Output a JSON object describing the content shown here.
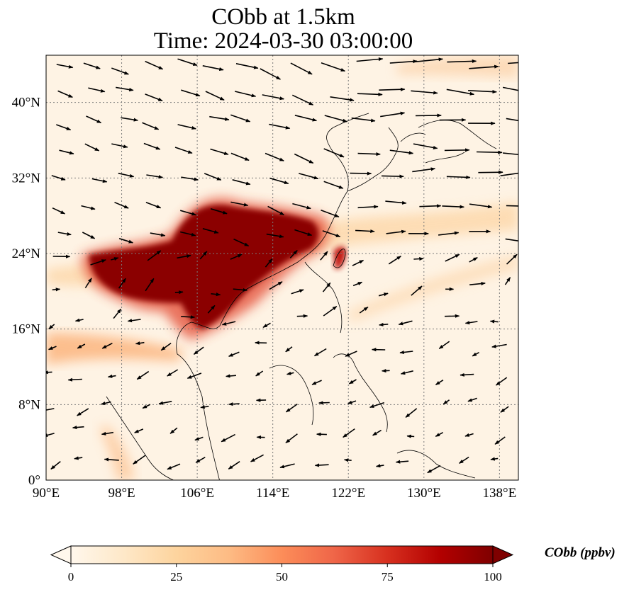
{
  "figure": {
    "title_line1": "CObb at 1.5km",
    "title_line2": "Time: 2024-03-30 03:00:00"
  },
  "map": {
    "lon_range": [
      90,
      140
    ],
    "lat_range": [
      0,
      45
    ],
    "lon_ticks": [
      "90°E",
      "98°E",
      "106°E",
      "114°E",
      "122°E",
      "130°E",
      "138°E"
    ],
    "lon_tick_values": [
      90,
      98,
      106,
      114,
      122,
      130,
      138
    ],
    "lat_ticks": [
      "0°",
      "8°N",
      "16°N",
      "24°N",
      "32°N",
      "40°N"
    ],
    "lat_tick_values": [
      0,
      8,
      16,
      24,
      32,
      40
    ],
    "gridlines": true,
    "gridline_style": "dotted",
    "coastlines": true,
    "wind_vectors": true
  },
  "colorbar": {
    "label": "CObb (ppbv)",
    "ticks": [
      "0",
      "25",
      "50",
      "75",
      "100"
    ],
    "range": [
      0,
      100
    ],
    "colormap": "OrRd",
    "extend": "both",
    "colors": [
      "#fff7ec",
      "#fee8c8",
      "#fdd49e",
      "#fdbb84",
      "#fc8d59",
      "#ef6548",
      "#d7301f",
      "#b30000",
      "#7f0000"
    ]
  }
}
